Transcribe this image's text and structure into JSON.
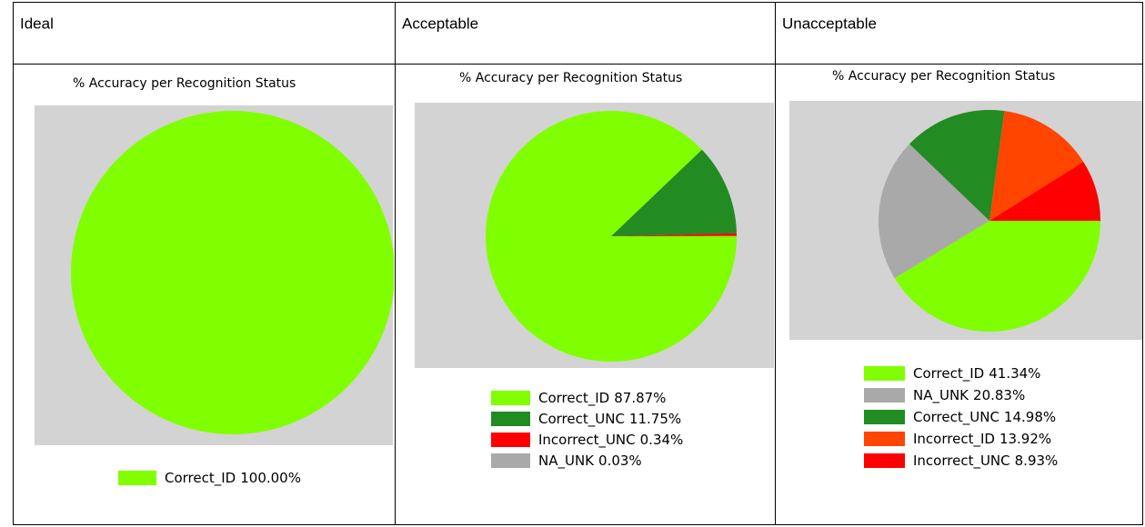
{
  "table": {
    "headers": [
      "Ideal",
      "Acceptable",
      "Unacceptable"
    ]
  },
  "chart_data": [
    {
      "type": "pie",
      "title": "% Accuracy per Recognition Status",
      "categories": [
        "Correct_ID"
      ],
      "values": [
        100
      ],
      "value_labels": [
        "100.00%"
      ],
      "colors": [
        "#80ff00"
      ]
    },
    {
      "type": "pie",
      "title": "% Accuracy per Recognition Status",
      "categories": [
        "Correct_ID",
        "Correct_UNC",
        "Incorrect_UNC",
        "NA_UNK"
      ],
      "values": [
        87.87,
        11.75,
        0.34,
        0.03
      ],
      "value_labels": [
        "87.87%",
        "11.75%",
        "0.34%",
        "0.03%"
      ],
      "colors": [
        "#80ff00",
        "#228b22",
        "#ff0000",
        "#a9a9a9"
      ]
    },
    {
      "type": "pie",
      "title": "% Accuracy per Recognition Status",
      "categories": [
        "Correct_ID",
        "NA_UNK",
        "Correct_UNC",
        "Incorrect_ID",
        "Incorrect_UNC"
      ],
      "values": [
        41.34,
        20.83,
        14.98,
        13.92,
        8.93
      ],
      "value_labels": [
        "41.34%",
        "20.83%",
        "14.98%",
        "13.92%",
        "8.93%"
      ],
      "colors": [
        "#80ff00",
        "#a9a9a9",
        "#228b22",
        "#ff4500",
        "#ff0000"
      ]
    }
  ]
}
